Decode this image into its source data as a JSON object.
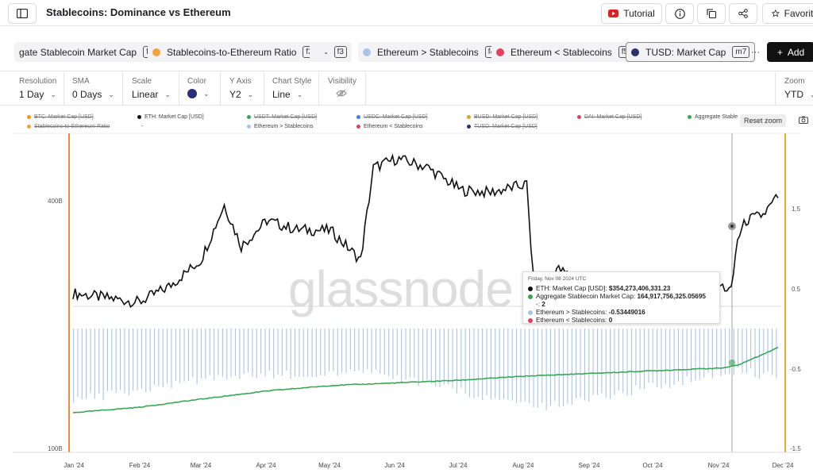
{
  "header": {
    "title": "Stablecoins: Dominance vs Ethereum",
    "tutorial_label": "Tutorial",
    "favorite_label": "Favorite"
  },
  "metrics": [
    {
      "label": "gate Stablecoin Market Cap",
      "key": "f1",
      "color": ""
    },
    {
      "label": "Stablecoins-to-Ethereum Ratio",
      "key": "f2",
      "color": "#f2a33a"
    },
    {
      "label": "-",
      "key": "f3",
      "color": ""
    },
    {
      "label": "Ethereum > Stablecoins",
      "key": "f4",
      "color": "#a9c4ea"
    },
    {
      "label": "Ethereum < Stablecoins",
      "key": "f5",
      "color": "#e0425e"
    },
    {
      "label": "TUSD: Market Cap",
      "key": "m7",
      "color": "#2c2f6e"
    }
  ],
  "more_label": "···",
  "add_label": "Add",
  "controls": {
    "resolution": {
      "label": "Resolution",
      "value": "1 Day"
    },
    "sma": {
      "label": "SMA",
      "value": "0 Days"
    },
    "scale": {
      "label": "Scale",
      "value": "Linear"
    },
    "color": {
      "label": "Color",
      "value": "#2a2f7a"
    },
    "yaxis": {
      "label": "Y Axis",
      "value": "Y2"
    },
    "chart_style": {
      "label": "Chart Style",
      "value": "Line"
    },
    "visibility": {
      "label": "Visibility"
    },
    "zoom": {
      "label": "Zoom",
      "value": "YTD"
    }
  },
  "legend": [
    {
      "label": "BTC: Market Cap [USD]",
      "color": "#f7931a",
      "off": true
    },
    {
      "label": "ETH: Market Cap [USD]",
      "color": "#111111",
      "off": false
    },
    {
      "label": "USDT: Market Cap [USD]",
      "color": "#3aa655",
      "off": true
    },
    {
      "label": "USDC: Market Cap [USD]",
      "color": "#4a7fd4",
      "off": true
    },
    {
      "label": "BUSD: Market Cap [USD]",
      "color": "#d9a520",
      "off": true
    },
    {
      "label": "DAI: Market Cap [USD]",
      "color": "#e0425e",
      "off": true
    },
    {
      "label": "Aggregate Stable",
      "color": "#3aa655",
      "off": false
    },
    {
      "label": "Stablecoins-to-Ethereum Ratio",
      "color": "#f2a33a",
      "off": true
    },
    {
      "label": "-",
      "color": "",
      "off": false
    },
    {
      "label": "Ethereum > Stablecoins",
      "color": "#a9c4ea",
      "off": false
    },
    {
      "label": "Ethereum < Stablecoins",
      "color": "#e0425e",
      "off": false
    },
    {
      "label": "TUSD: Market Cap [USD]",
      "color": "#2c2f6e",
      "off": true
    }
  ],
  "reset_zoom_label": "Reset zoom",
  "watermark": "glassnode",
  "tooltip": {
    "date": "Friday, Nov 08 2024 UTC",
    "rows": [
      {
        "color": "#111111",
        "label": "ETH: Market Cap [USD]:",
        "value": "$354,273,406,331.23"
      },
      {
        "color": "#3aa655",
        "label": "Aggregate Stablecoin Market Cap:",
        "value": "164,917,756,325.05695"
      },
      {
        "color": "",
        "label": "-:",
        "value": "2"
      },
      {
        "color": "#a9c4ea",
        "label": "Ethereum > Stablecoins:",
        "value": "-0.53449016"
      },
      {
        "color": "#e0425e",
        "label": "Ethereum < Stablecoins:",
        "value": "0"
      }
    ]
  },
  "chart_data": {
    "type": "line",
    "x_ticks": [
      "Jan '24",
      "Feb '24",
      "Mar '24",
      "Apr '24",
      "May '24",
      "Jun '24",
      "Jul '24",
      "Aug '24",
      "Sep '24",
      "Oct '24",
      "Nov '24",
      "Dec '24"
    ],
    "y_left_ticks": [
      "400B",
      "100B"
    ],
    "y_right_ticks": [
      "1.5",
      "0.5",
      "-0.5",
      "-1.5"
    ],
    "y_right_range": [
      -1.5,
      2.0
    ],
    "series": [
      {
        "name": "ETH: Market Cap [USD]",
        "color": "#111111",
        "unit": "USD (billions)",
        "x": [
          "2024-01-01",
          "2024-01-15",
          "2024-02-01",
          "2024-02-15",
          "2024-03-01",
          "2024-03-12",
          "2024-03-20",
          "2024-04-01",
          "2024-04-15",
          "2024-05-01",
          "2024-05-15",
          "2024-05-21",
          "2024-06-01",
          "2024-06-15",
          "2024-07-01",
          "2024-07-15",
          "2024-08-01",
          "2024-08-05",
          "2024-08-15",
          "2024-09-01",
          "2024-09-07",
          "2024-09-15",
          "2024-10-01",
          "2024-10-15",
          "2024-11-01",
          "2024-11-05",
          "2024-11-08",
          "2024-11-12",
          "2024-11-20",
          "2024-11-27"
        ],
        "values": [
          288,
          283,
          277,
          296,
          328,
          395,
          345,
          376,
          365,
          364,
          328,
          440,
          451,
          441,
          413,
          410,
          420,
          270,
          318,
          295,
          268,
          285,
          290,
          302,
          296,
          290,
          354,
          376,
          383,
          405
        ]
      },
      {
        "name": "Aggregate Stablecoin Market Cap",
        "color": "#3aa655",
        "unit": "USD (billions)",
        "x": [
          "2024-01-01",
          "2024-02-01",
          "2024-03-01",
          "2024-04-01",
          "2024-05-01",
          "2024-06-01",
          "2024-07-01",
          "2024-08-01",
          "2024-09-01",
          "2024-10-01",
          "2024-11-01",
          "2024-11-08",
          "2024-11-27"
        ],
        "values": [
          130,
          134,
          140,
          146,
          150,
          152,
          154,
          157,
          159,
          161,
          163,
          165,
          178
        ]
      },
      {
        "name": "Ethereum > Stablecoins",
        "color": "#a9c4ea",
        "unit": "ratio",
        "x": [
          "2024-01-01",
          "2024-03-12",
          "2024-05-21",
          "2024-08-05",
          "2024-11-08",
          "2024-11-27"
        ],
        "values": [
          -0.9,
          -0.6,
          -0.55,
          -1.0,
          -0.53,
          -0.6
        ]
      }
    ]
  }
}
